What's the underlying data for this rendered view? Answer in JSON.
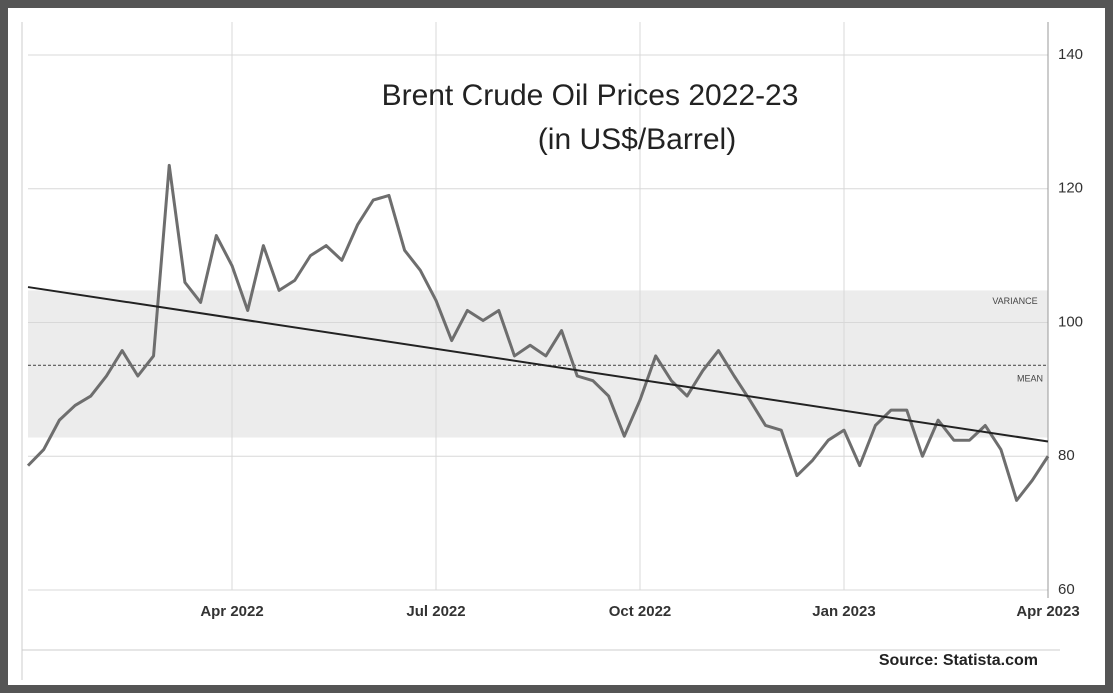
{
  "chart_data": {
    "type": "line",
    "title": "Brent Crude Oil Prices 2022-23",
    "subtitle": "(in US$/Barrel)",
    "source": "Source: Statista.com",
    "categories": [
      null,
      null,
      null,
      null,
      null,
      null,
      null,
      null,
      null,
      null,
      null,
      null,
      null,
      "Apr 2022",
      null,
      null,
      null,
      null,
      null,
      null,
      null,
      null,
      null,
      null,
      null,
      null,
      "Jul 2022",
      null,
      null,
      null,
      null,
      null,
      null,
      null,
      null,
      null,
      null,
      null,
      null,
      "Oct 2022",
      null,
      null,
      null,
      null,
      null,
      null,
      null,
      null,
      null,
      null,
      null,
      null,
      "Jan 2023",
      null,
      null,
      null,
      null,
      null,
      null,
      null,
      null,
      null,
      null,
      null,
      null,
      "Apr 2023"
    ],
    "values": [
      78.6,
      81,
      85.4,
      87.6,
      89,
      92,
      95.8,
      92,
      95,
      123.5,
      106,
      103,
      113,
      108.5,
      101.8,
      111.5,
      104.8,
      106.3,
      110,
      111.5,
      109.3,
      114.6,
      118.3,
      119,
      110.8,
      107.8,
      103.3,
      97.3,
      101.8,
      100.3,
      101.8,
      95,
      96.6,
      95,
      98.8,
      92,
      91.3,
      89,
      83,
      88.4,
      95,
      91.3,
      89,
      92.8,
      95.8,
      92,
      88.4,
      84.6,
      83.9,
      77.1,
      79.4,
      82.4,
      83.9,
      78.6,
      84.6,
      86.9,
      86.9,
      80,
      85.4,
      82.4,
      82.4,
      84.6,
      81,
      73.4,
      76.4,
      80
    ],
    "color": "#6e6e6e",
    "trend": [
      105.3,
      82.2
    ],
    "trend_color": "#222222",
    "mean": 93.6,
    "mean_label": "MEAN",
    "variance_band": [
      82.8,
      104.8
    ],
    "variance_label": "VARIANCE",
    "band_color": "#ececec",
    "ylim": [
      60,
      140
    ],
    "yticks": [
      60,
      80,
      100,
      120,
      140
    ],
    "grid": true
  }
}
